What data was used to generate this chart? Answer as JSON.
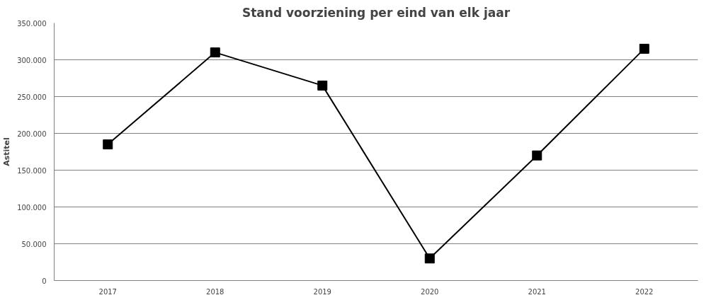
{
  "chart_data": {
    "type": "line",
    "title": "Stand voorziening per eind van elk jaar",
    "ylabel": "Astitel",
    "categories": [
      "2017",
      "2018",
      "2019",
      "2020",
      "2021",
      "2022"
    ],
    "series": [
      {
        "color": "#000000",
        "values": [
          185000,
          310000,
          265000,
          30000,
          170000,
          315000
        ]
      }
    ],
    "ylim": [
      0,
      350000
    ],
    "yticks": [
      {
        "value": 0,
        "label": "0"
      },
      {
        "value": 50000,
        "label": "50.000"
      },
      {
        "value": 100000,
        "label": "100.000"
      },
      {
        "value": 150000,
        "label": "150.000"
      },
      {
        "value": 200000,
        "label": "200.000"
      },
      {
        "value": 250000,
        "label": "250.000"
      },
      {
        "value": 300000,
        "label": "300.000"
      },
      {
        "value": 350000,
        "label": "350.000"
      }
    ],
    "grid": "y",
    "marker": "square",
    "line_style": "solid"
  }
}
